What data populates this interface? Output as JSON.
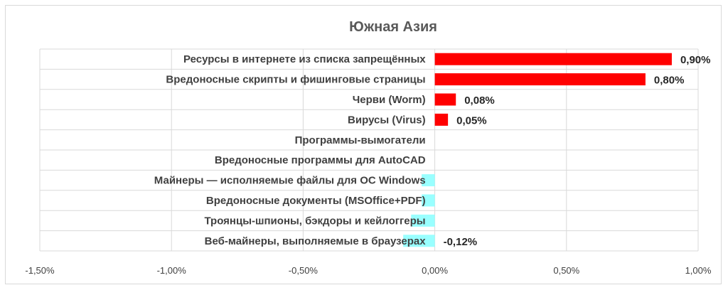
{
  "chart_data": {
    "type": "bar",
    "orientation": "horizontal",
    "title": "Южная Азия",
    "xlabel": "",
    "ylabel": "",
    "xlim": [
      -1.5,
      1.0
    ],
    "x_ticks": [
      "-1,50%",
      "-1,00%",
      "-0,50%",
      "0,00%",
      "0,50%",
      "1,00%"
    ],
    "grid": true,
    "legend": "none",
    "colors": {
      "positive": "#ff0000",
      "negative": "#99ffff"
    },
    "categories": [
      "Ресурсы в интернете из списка запрещённых",
      "Вредоносные скрипты и фишинговые страницы",
      "Черви (Worm)",
      "Вирусы (Virus)",
      "Программы-вымогатели",
      "Вредоносные программы для AutoCAD",
      "Майнеры — исполняемые файлы для ОС Windows",
      "Вредоносные документы (MSOffice+PDF)",
      "Троянцы-шпионы, бэкдоры и кейлоггеры",
      "Веб-майнеры, выполняемые в браузерах"
    ],
    "values": [
      0.9,
      0.8,
      0.08,
      0.05,
      0.0,
      0.0,
      -0.05,
      -0.05,
      -0.09,
      -0.12
    ],
    "data_labels": [
      "0,90%",
      "0,80%",
      "0,08%",
      "0,05%",
      "",
      "",
      "",
      "",
      "",
      "-0,12%"
    ]
  }
}
